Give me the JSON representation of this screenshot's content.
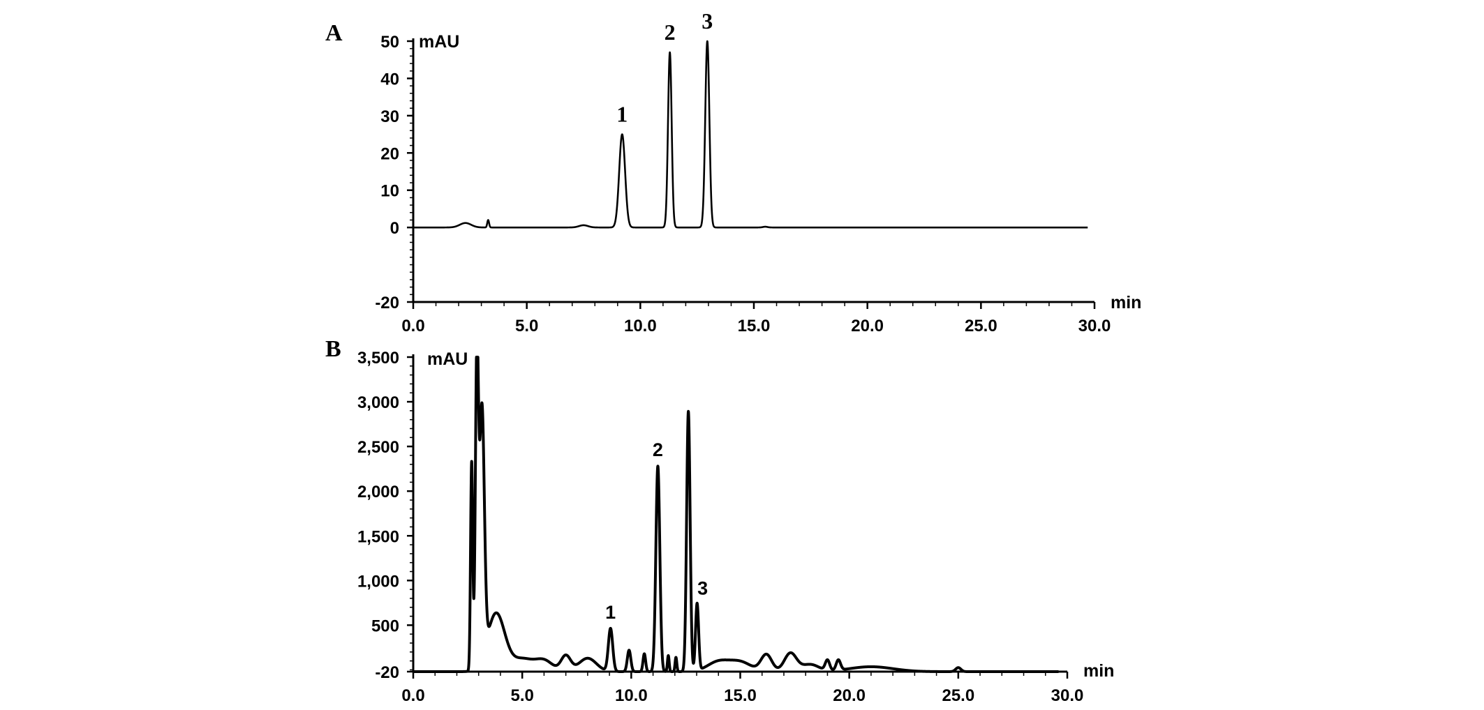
{
  "chart_data": [
    {
      "type": "line",
      "panel": "A",
      "yunit": "mAU",
      "xunit": "min",
      "xlim": [
        0,
        30
      ],
      "ylim": [
        -20,
        50
      ],
      "xticks": [
        0,
        5,
        10,
        15,
        20,
        25,
        30
      ],
      "xtick_labels": [
        "0.0",
        "5.0",
        "10.0",
        "15.0",
        "20.0",
        "25.0",
        "30.0"
      ],
      "yticks": [
        -20,
        0,
        10,
        20,
        30,
        40,
        50
      ],
      "ytick_labels": [
        "-20",
        "0",
        "10",
        "20",
        "30",
        "40",
        "50"
      ],
      "grid": false,
      "baseline": 0,
      "x_end": 29.7,
      "peaks": [
        {
          "x": 2.3,
          "height": 1.2,
          "width": 0.25
        },
        {
          "x": 3.3,
          "height": 2.0,
          "width": 0.04
        },
        {
          "x": 7.5,
          "height": 0.6,
          "width": 0.2
        },
        {
          "x": 9.2,
          "height": 25,
          "width": 0.13
        },
        {
          "x": 11.3,
          "height": 47,
          "width": 0.08
        },
        {
          "x": 12.95,
          "height": 50,
          "width": 0.09,
          "flat": true
        },
        {
          "x": 15.5,
          "height": 0.2,
          "width": 0.1
        }
      ],
      "peak_labels": [
        {
          "label": "1",
          "x": 9.2,
          "y": 25
        },
        {
          "label": "2",
          "x": 11.3,
          "y": 47
        },
        {
          "label": "3",
          "x": 12.95,
          "y": 50
        }
      ]
    },
    {
      "type": "line",
      "panel": "B",
      "yunit": "mAU",
      "xunit": "min",
      "xlim": [
        0,
        30
      ],
      "ylim": [
        -20,
        3500
      ],
      "xticks": [
        0,
        5,
        10,
        15,
        20,
        25,
        30
      ],
      "xtick_labels": [
        "0.0",
        "5.0",
        "10.0",
        "15.0",
        "20.0",
        "25.0",
        "30.0"
      ],
      "yticks": [
        -20,
        500,
        1000,
        1500,
        2000,
        2500,
        3000,
        3500
      ],
      "ytick_labels": [
        "-20",
        "500",
        "1,000",
        "1,500",
        "2,000",
        "2,500",
        "3,000",
        "3,500"
      ],
      "grid": false,
      "baseline": -20,
      "x_end": 29.6,
      "peaks": [
        {
          "x": 2.68,
          "height": 2330,
          "width": 0.05
        },
        {
          "x": 2.92,
          "height": 3450,
          "width": 0.07
        },
        {
          "x": 3.15,
          "height": 2820,
          "width": 0.11
        },
        {
          "x": 3.8,
          "height": 650,
          "width": 0.4
        },
        {
          "x": 5.0,
          "height": 140,
          "width": 0.5
        },
        {
          "x": 6.0,
          "height": 120,
          "width": 0.4
        },
        {
          "x": 7.0,
          "height": 175,
          "width": 0.22
        },
        {
          "x": 8.0,
          "height": 150,
          "width": 0.4
        },
        {
          "x": 9.05,
          "height": 480,
          "width": 0.1
        },
        {
          "x": 9.9,
          "height": 240,
          "width": 0.08
        },
        {
          "x": 10.6,
          "height": 200,
          "width": 0.06
        },
        {
          "x": 11.22,
          "height": 2300,
          "width": 0.09
        },
        {
          "x": 11.7,
          "height": 180,
          "width": 0.04
        },
        {
          "x": 12.05,
          "height": 160,
          "width": 0.04
        },
        {
          "x": 12.62,
          "height": 2910,
          "width": 0.08
        },
        {
          "x": 13.02,
          "height": 750,
          "width": 0.07
        },
        {
          "x": 14.0,
          "height": 110,
          "width": 0.5
        },
        {
          "x": 15.0,
          "height": 105,
          "width": 0.5
        },
        {
          "x": 16.2,
          "height": 190,
          "width": 0.25
        },
        {
          "x": 17.3,
          "height": 205,
          "width": 0.28
        },
        {
          "x": 18.2,
          "height": 80,
          "width": 0.4
        },
        {
          "x": 19.0,
          "height": 115,
          "width": 0.1
        },
        {
          "x": 19.5,
          "height": 115,
          "width": 0.1
        },
        {
          "x": 21.0,
          "height": 55,
          "width": 1.0
        },
        {
          "x": 25.0,
          "height": 45,
          "width": 0.12
        }
      ],
      "peak_labels": [
        {
          "label": "1",
          "x": 9.05,
          "y": 480
        },
        {
          "label": "2",
          "x": 11.22,
          "y": 2300
        },
        {
          "label": "3",
          "x": 13.02,
          "y": 750
        }
      ]
    }
  ]
}
